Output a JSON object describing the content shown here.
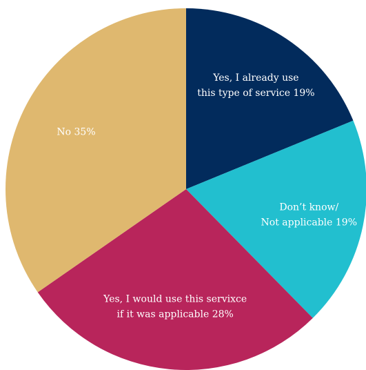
{
  "chart_data": {
    "type": "pie",
    "start_angle_deg": 0,
    "direction": "clockwise",
    "slices": [
      {
        "label_lines": [
          "Yes, I already use",
          "this type of service 19%"
        ],
        "value": 19,
        "color": "#022b5c"
      },
      {
        "label_lines": [
          "Don’t know/",
          "Not applicable 19%"
        ],
        "value": 19,
        "color": "#22bfcf"
      },
      {
        "label_lines": [
          "Yes, I would use this servixce",
          "if it was applicable 28%"
        ],
        "value": 28,
        "color": "#b8255b"
      },
      {
        "label_lines": [
          "No 35%"
        ],
        "value": 35,
        "color": "#dfb86f"
      }
    ]
  }
}
